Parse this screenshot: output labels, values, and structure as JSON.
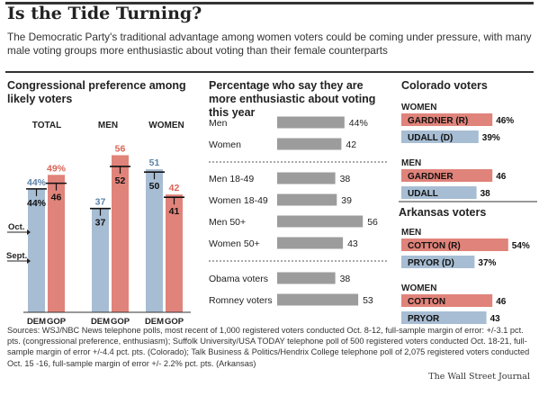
{
  "header": {
    "title": "Is the Tide Turning?",
    "subtitle": "The Democratic Party's traditional advantage among women voters could be coming under pressure, with many male voting groups more enthusiastic about voting than their female counterparts"
  },
  "colors": {
    "dem": "#a7bdd3",
    "gop": "#e0837a",
    "gray": "#9c9c9c",
    "dem_text": "#5b82a8",
    "gop_text": "#d96356"
  },
  "chart_data": [
    {
      "type": "bar",
      "title": "Congressional preference among likely voters",
      "groups": [
        "TOTAL",
        "MEN",
        "WOMEN"
      ],
      "categories": [
        "DEM",
        "GOP"
      ],
      "series": [
        {
          "name": "Oct.",
          "values": {
            "TOTAL": [
              44,
              49
            ],
            "MEN": [
              37,
              56
            ],
            "WOMEN": [
              51,
              42
            ]
          }
        },
        {
          "name": "Sept.",
          "values": {
            "TOTAL": [
              44,
              46
            ],
            "MEN": [
              37,
              52
            ],
            "WOMEN": [
              50,
              41
            ]
          }
        }
      ],
      "value_labels": {
        "TOTAL": {
          "DEM": [
            "44%",
            "44%"
          ],
          "GOP": [
            "49%",
            "46"
          ]
        },
        "MEN": {
          "DEM": [
            "37",
            "37"
          ],
          "GOP": [
            "56",
            "52"
          ]
        },
        "WOMEN": {
          "DEM": [
            "51",
            "50"
          ],
          "GOP": [
            "42",
            "41"
          ]
        }
      },
      "marker_labels": [
        "Oct.",
        "Sept."
      ],
      "ylim": [
        0,
        60
      ]
    },
    {
      "type": "bar",
      "orientation": "horizontal",
      "title": "Percentage who say they are more enthusiastic about voting this year",
      "groups": [
        {
          "rows": [
            {
              "label": "Men",
              "value": 44,
              "display": "44%"
            },
            {
              "label": "Women",
              "value": 42,
              "display": "42"
            }
          ]
        },
        {
          "rows": [
            {
              "label": "Men 18-49",
              "value": 38,
              "display": "38"
            },
            {
              "label": "Women 18-49",
              "value": 39,
              "display": "39"
            },
            {
              "label": "Men 50+",
              "value": 56,
              "display": "56"
            },
            {
              "label": "Women 50+",
              "value": 43,
              "display": "43"
            }
          ]
        },
        {
          "rows": [
            {
              "label": "Obama voters",
              "value": 38,
              "display": "38"
            },
            {
              "label": "Romney voters",
              "value": 53,
              "display": "53"
            }
          ]
        }
      ],
      "xlim": [
        0,
        60
      ]
    },
    {
      "type": "bar",
      "orientation": "horizontal",
      "title": "Colorado voters",
      "groups": [
        {
          "heading": "WOMEN",
          "rows": [
            {
              "label": "GARDNER (R)",
              "party": "gop",
              "value": 46,
              "display": "46%"
            },
            {
              "label": "UDALL (D)",
              "party": "dem",
              "value": 39,
              "display": "39%"
            }
          ]
        },
        {
          "heading": "MEN",
          "rows": [
            {
              "label": "GARDNER",
              "party": "gop",
              "value": 46,
              "display": "46"
            },
            {
              "label": "UDALL",
              "party": "dem",
              "value": 38,
              "display": "38"
            }
          ]
        }
      ],
      "xlim": [
        0,
        60
      ]
    },
    {
      "type": "bar",
      "orientation": "horizontal",
      "title": "Arkansas voters",
      "groups": [
        {
          "heading": "MEN",
          "rows": [
            {
              "label": "COTTON (R)",
              "party": "gop",
              "value": 54,
              "display": "54%"
            },
            {
              "label": "PRYOR (D)",
              "party": "dem",
              "value": 37,
              "display": "37%"
            }
          ]
        },
        {
          "heading": "WOMEN",
          "rows": [
            {
              "label": "COTTON",
              "party": "gop",
              "value": 46,
              "display": "46"
            },
            {
              "label": "PRYOR",
              "party": "dem",
              "value": 43,
              "display": "43"
            }
          ]
        }
      ],
      "xlim": [
        0,
        60
      ]
    }
  ],
  "footer": {
    "sources": "Sources: WSJ/NBC News telephone polls, most recent of 1,000 registered voters conducted Oct. 8-12, full-sample margin of error: +/-3.1 pct. pts. (congressional preference, enthusiasm); Suffolk University/USA TODAY telephone poll of 500 registered voters conducted Oct. 18-21, full-sample margin of error +/-4.4 pct. pts. (Colorado); Talk Business & Politics/Hendrix College telephone poll of 2,075 registered voters conducted Oct. 15 -16, full-sample margin of error +/- 2.2% pct. pts. (Arkansas)",
    "credit": "The Wall Street Journal"
  }
}
